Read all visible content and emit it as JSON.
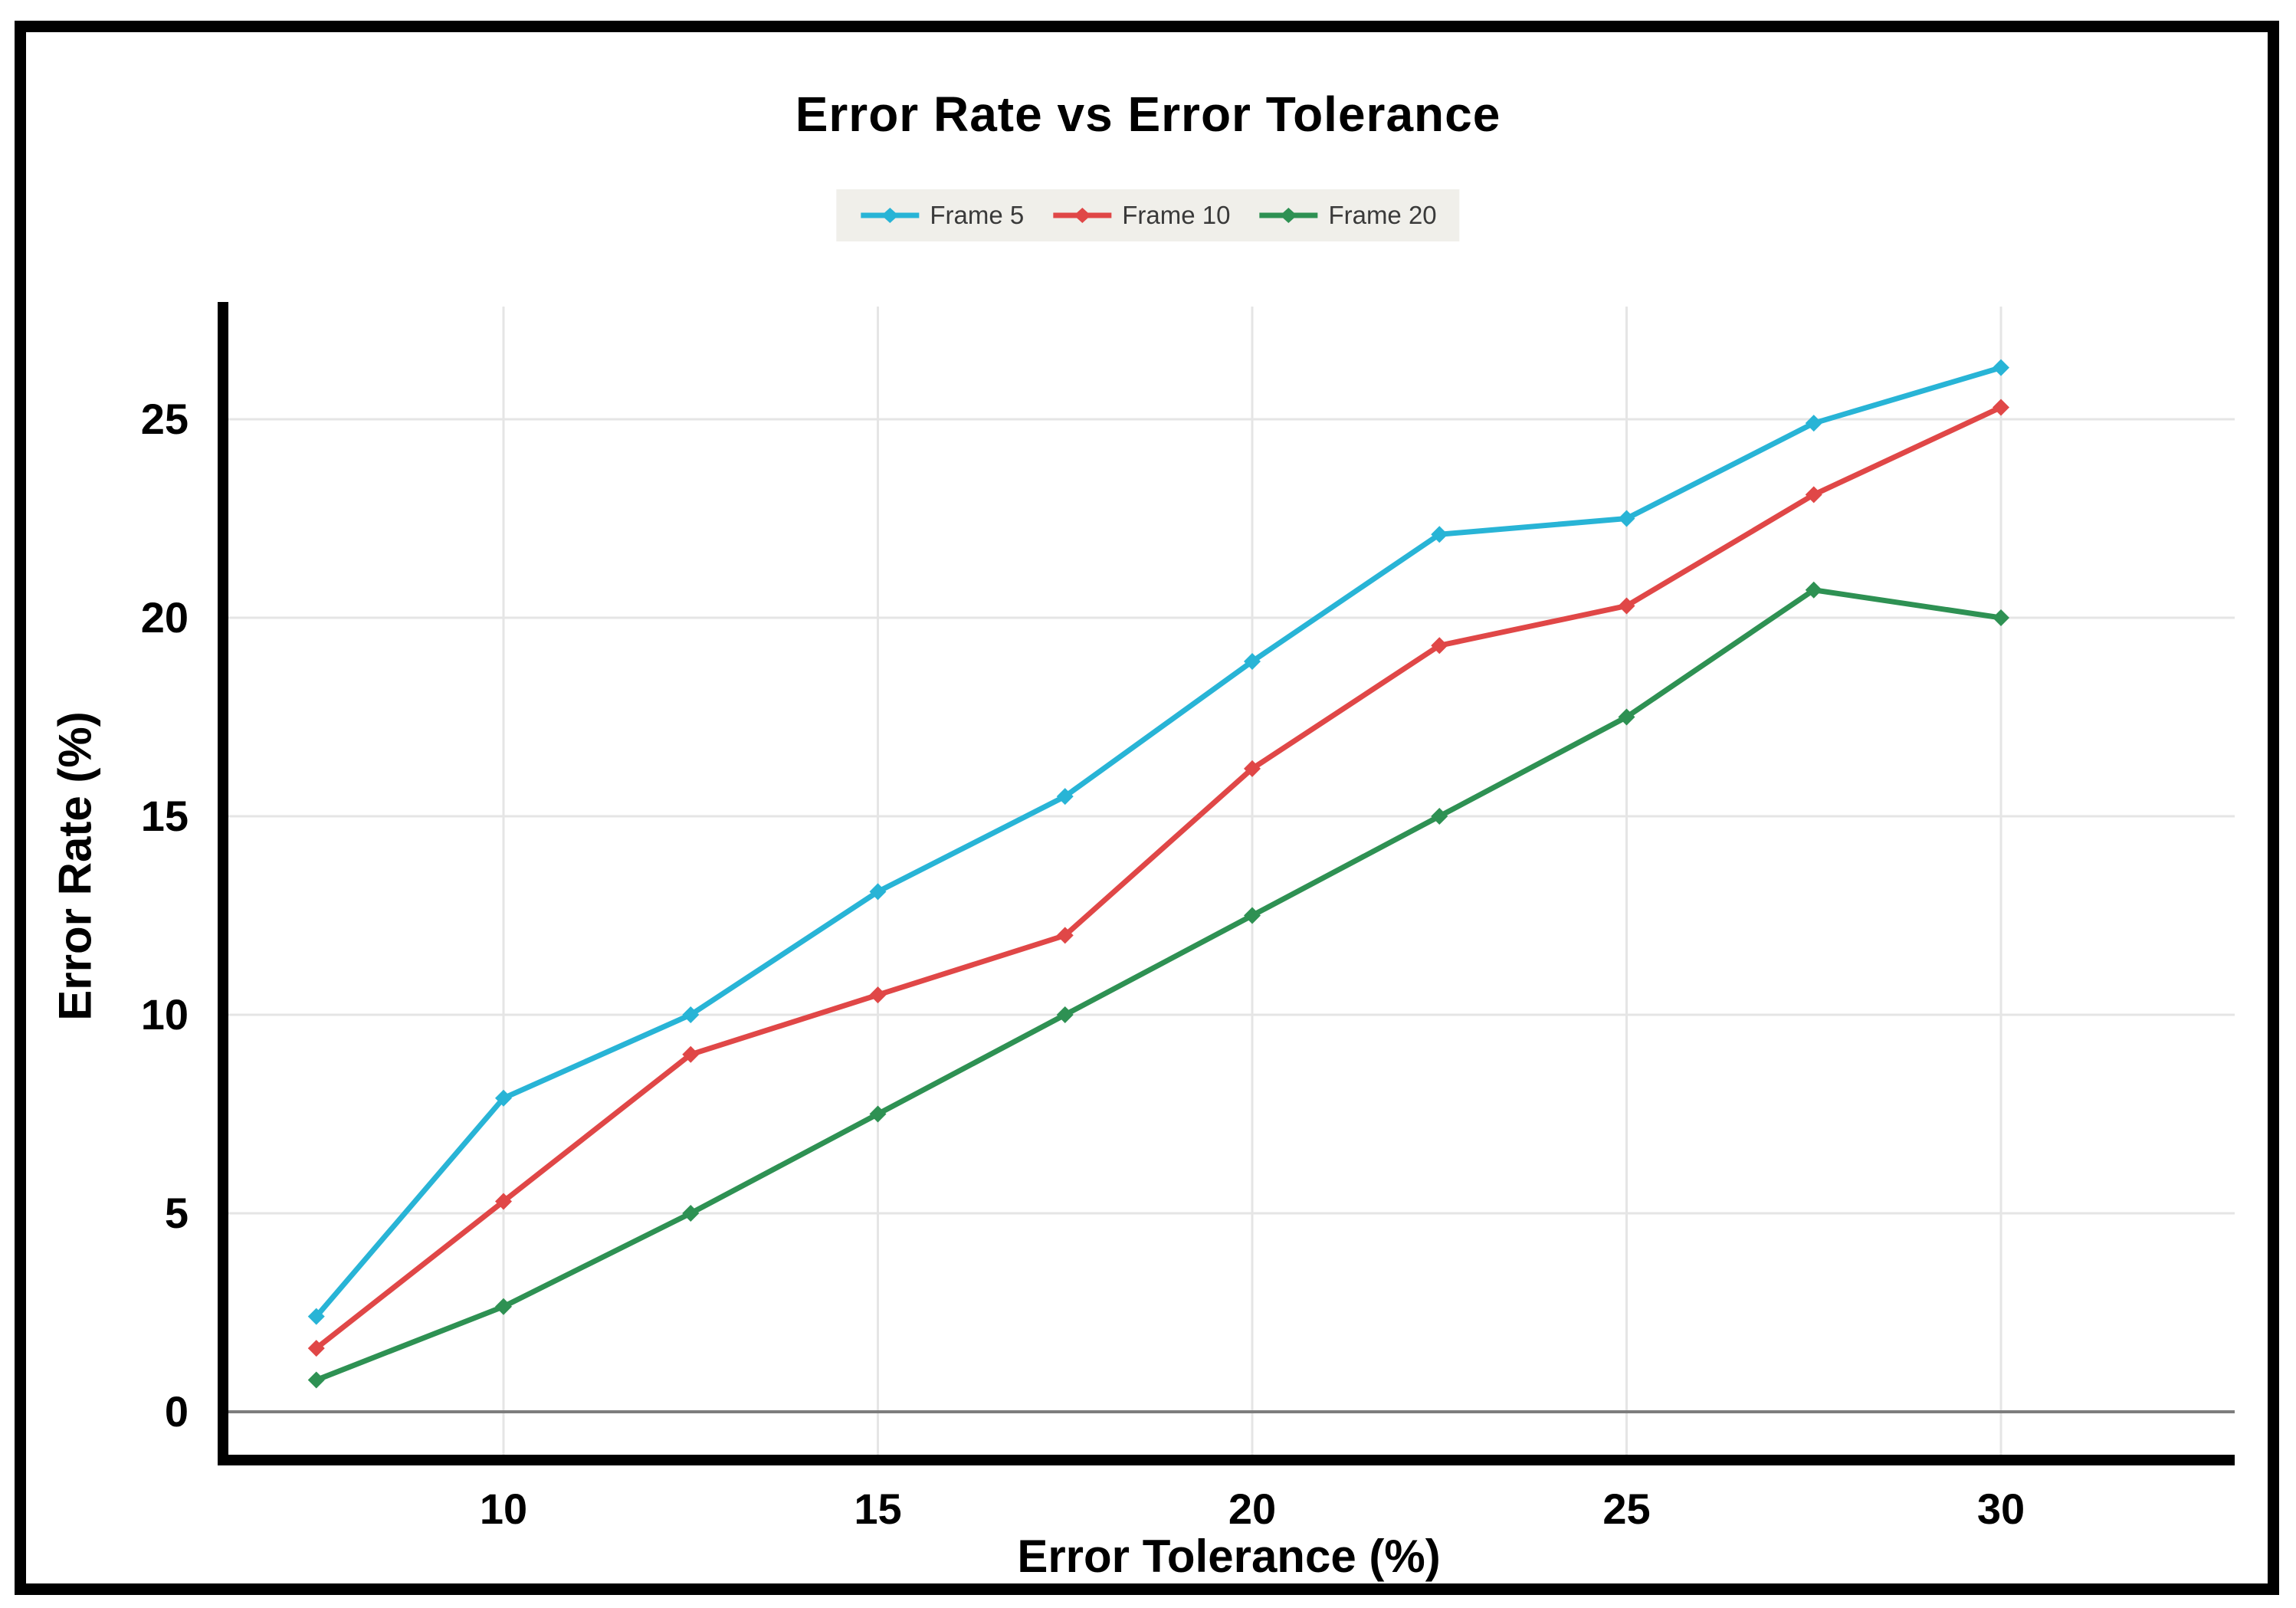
{
  "chart_data": {
    "type": "line",
    "title": "Error Rate vs Error Tolerance",
    "xlabel": "Error Tolerance (%)",
    "ylabel": "Error Rate (%)",
    "x": [
      7.5,
      10,
      12.5,
      15,
      17.5,
      20,
      22.5,
      25,
      27.5,
      30
    ],
    "series": [
      {
        "name": "Frame 5",
        "color": "#28b4d6",
        "values": [
          2.4,
          7.9,
          10.0,
          13.1,
          15.5,
          18.9,
          22.1,
          22.5,
          24.9,
          26.3
        ]
      },
      {
        "name": "Frame 10",
        "color": "#e04747",
        "values": [
          1.6,
          5.3,
          9.0,
          10.5,
          12.0,
          16.2,
          19.3,
          20.3,
          23.1,
          25.3
        ]
      },
      {
        "name": "Frame 20",
        "color": "#2e9153",
        "values": [
          0.8,
          2.65,
          5.0,
          7.5,
          10.0,
          12.5,
          15.0,
          17.5,
          20.7,
          20.0
        ]
      }
    ],
    "xticks": [
      "10",
      "15",
      "20",
      "25",
      "30"
    ],
    "xtick_values": [
      10,
      15,
      20,
      25,
      30
    ],
    "yticks": [
      "0",
      "5",
      "10",
      "15",
      "20",
      "25"
    ],
    "ytick_values": [
      0,
      5,
      10,
      15,
      20,
      25
    ],
    "xlim": [
      6.3,
      33.1
    ],
    "ylim": [
      -1.2,
      27.9
    ],
    "grid": true,
    "legend_position": "top-center",
    "colors": {
      "gridline": "#e5e5e5",
      "zero_line": "#7d7d7d",
      "axis_spine": "#000000",
      "tick_label": "#000000",
      "legend_bg": "#f0efea",
      "legend_text": "#3a3a3a",
      "frame": "#000000",
      "background": "#ffffff"
    }
  }
}
